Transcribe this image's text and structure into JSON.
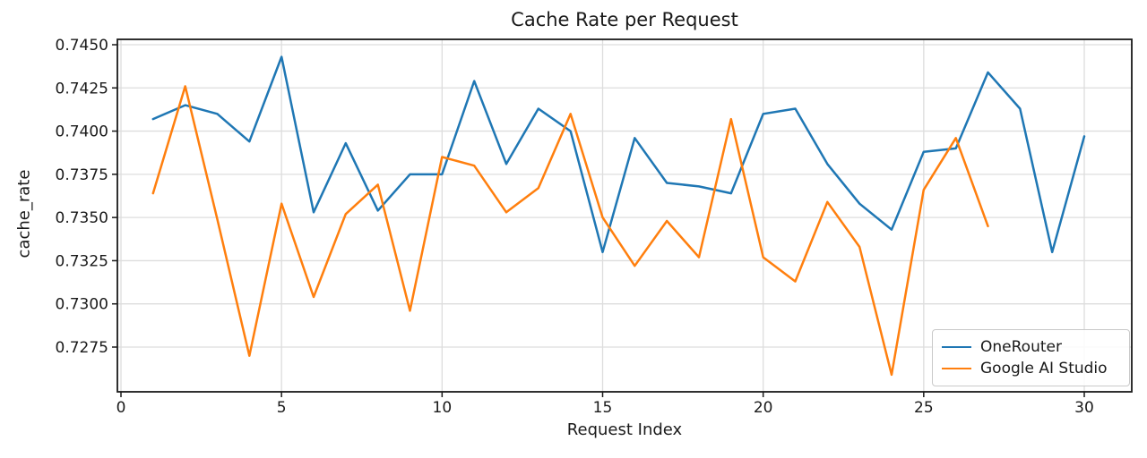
{
  "chart_data": {
    "type": "line",
    "title": "Cache Rate per Request",
    "xlabel": "Request Index",
    "ylabel": "cache_rate",
    "grid": true,
    "legend_position": "lower right",
    "xlim": [
      -0.1,
      31.5
    ],
    "ylim": [
      0.7249,
      0.7453
    ],
    "x_ticks": [
      0,
      5,
      10,
      15,
      20,
      25,
      30
    ],
    "y_ticks": [
      {
        "value": 0.7275,
        "label": "0.7275"
      },
      {
        "value": 0.73,
        "label": "0.7300"
      },
      {
        "value": 0.7325,
        "label": "0.7325"
      },
      {
        "value": 0.735,
        "label": "0.7350"
      },
      {
        "value": 0.7375,
        "label": "0.7375"
      },
      {
        "value": 0.74,
        "label": "0.7400"
      },
      {
        "value": 0.7425,
        "label": "0.7425"
      },
      {
        "value": 0.745,
        "label": "0.7450"
      }
    ],
    "series": [
      {
        "name": "OneRouter",
        "color": "#1f77b4",
        "x": [
          1,
          2,
          3,
          4,
          5,
          6,
          7,
          8,
          9,
          10,
          11,
          12,
          13,
          14,
          15,
          16,
          17,
          18,
          19,
          20,
          21,
          22,
          23,
          24,
          25,
          26,
          27,
          28,
          29,
          30
        ],
        "values": [
          0.7407,
          0.7415,
          0.741,
          0.7394,
          0.7443,
          0.7353,
          0.7393,
          0.7354,
          0.7375,
          0.7375,
          0.7429,
          0.7381,
          0.7413,
          0.74,
          0.733,
          0.7396,
          0.737,
          0.7368,
          0.7364,
          0.741,
          0.7413,
          0.7381,
          0.7358,
          0.7343,
          0.7388,
          0.739,
          0.7434,
          0.7413,
          0.733,
          0.7397
        ]
      },
      {
        "name": "Google AI Studio",
        "color": "#ff7f0e",
        "x": [
          1,
          2,
          3,
          4,
          5,
          6,
          7,
          8,
          9,
          10,
          11,
          12,
          13,
          14,
          15,
          16,
          17,
          18,
          19,
          20,
          21,
          22,
          23,
          24,
          25,
          26,
          27
        ],
        "values": [
          0.7364,
          0.7426,
          0.7349,
          0.727,
          0.7358,
          0.7304,
          0.7352,
          0.7369,
          0.7296,
          0.7385,
          0.738,
          0.7353,
          0.7367,
          0.741,
          0.735,
          0.7322,
          0.7348,
          0.7327,
          0.7407,
          0.7327,
          0.7313,
          0.7359,
          0.7333,
          0.7259,
          0.7366,
          0.7396,
          0.7345
        ]
      }
    ]
  }
}
